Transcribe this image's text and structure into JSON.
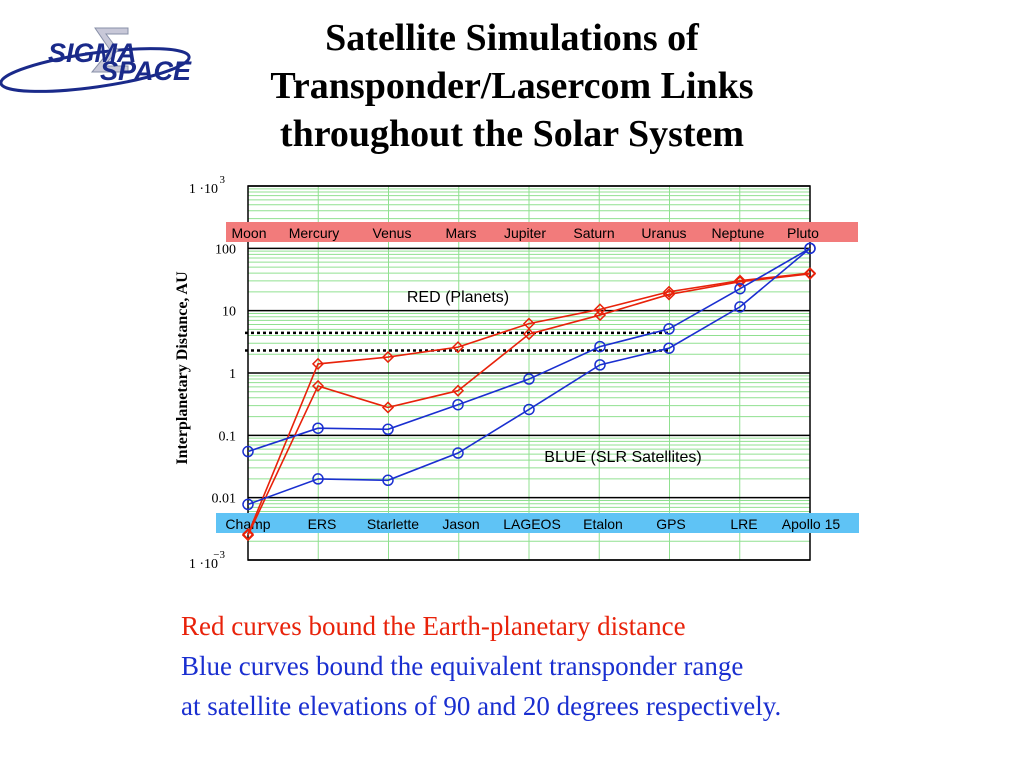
{
  "title": {
    "line1": "Satellite Simulations of",
    "line2": "Transponder/Lasercom Links",
    "line3": "throughout the Solar System"
  },
  "logo": {
    "word1": "SIGMA",
    "word2": "SPACE"
  },
  "colors": {
    "red": "#e8220a",
    "blue": "#1a2fd0",
    "grid_minor": "#90e090",
    "planet_band": "#f27b7b",
    "satellite_band": "#5fc3f5"
  },
  "chart_data": {
    "type": "line",
    "x": [
      1,
      2,
      3,
      4,
      5,
      6,
      7,
      8,
      9
    ],
    "ylabel": "Interplanetary Distance, AU",
    "yscale": "log",
    "ylim": [
      0.001,
      1000
    ],
    "y_ticks": [
      {
        "value": 1000,
        "label": "1 ·10",
        "exp": "3"
      },
      {
        "value": 100,
        "label": "100",
        "exp": ""
      },
      {
        "value": 10,
        "label": "10",
        "exp": ""
      },
      {
        "value": 1,
        "label": "1",
        "exp": ""
      },
      {
        "value": 0.1,
        "label": "0.1",
        "exp": ""
      },
      {
        "value": 0.01,
        "label": "0.01",
        "exp": ""
      },
      {
        "value": 0.001,
        "label": "1 ·10",
        "exp": "−3"
      }
    ],
    "grid": true,
    "planet_labels": [
      "Moon",
      "Mercury",
      "Venus",
      "Mars",
      "Jupiter",
      "Saturn",
      "Uranus",
      "Neptune",
      "Pluto"
    ],
    "satellite_labels": [
      "Champ",
      "ERS",
      "Starlette",
      "Jason",
      "LAGEOS",
      "Etalon",
      "GPS",
      "LRE",
      "Apollo 15"
    ],
    "annotations": {
      "red_label": "RED (Planets)",
      "blue_label": "BLUE (SLR Satellites)"
    },
    "reference_lines": [
      4.4,
      2.3
    ],
    "series": [
      {
        "color": "red",
        "marker": "diamond",
        "values": [
          0.0026,
          1.4,
          1.8,
          2.6,
          6.2,
          10.5,
          20.1,
          30.3,
          40
        ]
      },
      {
        "color": "red",
        "marker": "diamond",
        "values": [
          0.0025,
          0.62,
          0.28,
          0.52,
          4.2,
          8.5,
          18.2,
          29.1,
          39
        ]
      },
      {
        "color": "blue",
        "marker": "circle",
        "values": [
          0.055,
          0.13,
          0.125,
          0.31,
          0.8,
          2.65,
          5.1,
          22.5,
          100
        ]
      },
      {
        "color": "blue",
        "marker": "circle",
        "values": [
          0.0078,
          0.02,
          0.019,
          0.052,
          0.26,
          1.35,
          2.5,
          11.5,
          100
        ]
      }
    ]
  },
  "caption": {
    "line1": "Red curves bound the Earth-planetary distance",
    "line2": "Blue curves bound the equivalent transponder range",
    "line3": "at satellite elevations of 90 and 20 degrees respectively."
  }
}
